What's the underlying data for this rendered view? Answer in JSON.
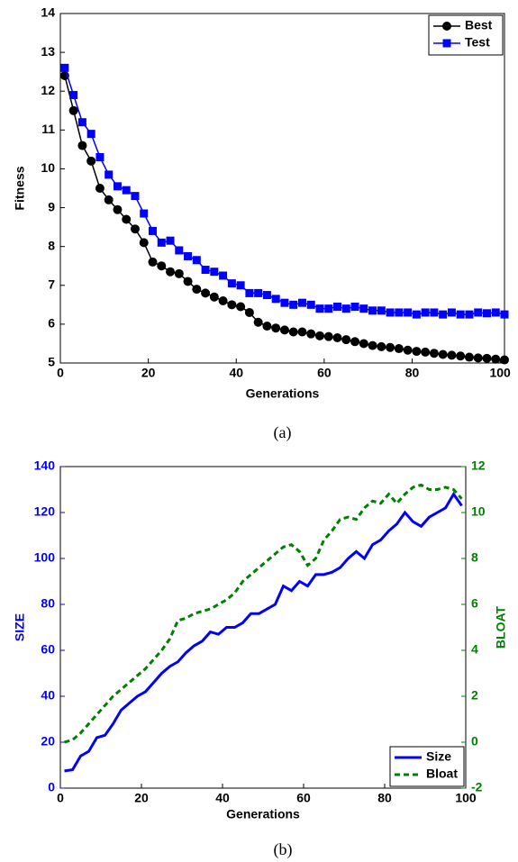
{
  "chart_data": [
    {
      "type": "line",
      "ylabel": "Fitness",
      "xlabel": "Generations",
      "caption": "(a)",
      "xlim": [
        0,
        101
      ],
      "xticks": [
        0,
        20,
        40,
        60,
        80,
        100
      ],
      "ylim": [
        5,
        14
      ],
      "yticks": [
        5,
        6,
        7,
        8,
        9,
        10,
        11,
        12,
        13,
        14
      ],
      "legend": "upper right",
      "x": [
        1,
        3,
        5,
        7,
        9,
        11,
        13,
        15,
        17,
        19,
        21,
        23,
        25,
        27,
        29,
        31,
        33,
        35,
        37,
        39,
        41,
        43,
        45,
        47,
        49,
        51,
        53,
        55,
        57,
        59,
        61,
        63,
        65,
        67,
        69,
        71,
        73,
        75,
        77,
        79,
        81,
        83,
        85,
        87,
        89,
        91,
        93,
        95,
        97,
        99,
        101
      ],
      "series": [
        {
          "name": "Best",
          "color": "#000000",
          "marker": "circle",
          "linestyle": "solid",
          "values": [
            12.4,
            11.5,
            10.6,
            10.2,
            9.5,
            9.2,
            8.95,
            8.7,
            8.45,
            8.1,
            7.6,
            7.5,
            7.35,
            7.3,
            7.1,
            6.9,
            6.8,
            6.7,
            6.6,
            6.5,
            6.45,
            6.3,
            6.05,
            5.95,
            5.9,
            5.85,
            5.8,
            5.8,
            5.75,
            5.7,
            5.68,
            5.65,
            5.6,
            5.55,
            5.5,
            5.45,
            5.42,
            5.4,
            5.37,
            5.33,
            5.3,
            5.28,
            5.25,
            5.22,
            5.2,
            5.18,
            5.15,
            5.13,
            5.12,
            5.1,
            5.08
          ]
        },
        {
          "name": "Test",
          "color": "#0000ff",
          "marker": "square",
          "linestyle": "solid",
          "values": [
            12.6,
            11.9,
            11.2,
            10.9,
            10.3,
            9.85,
            9.55,
            9.45,
            9.3,
            8.85,
            8.4,
            8.1,
            8.15,
            7.9,
            7.75,
            7.65,
            7.4,
            7.35,
            7.25,
            7.05,
            7.0,
            6.8,
            6.8,
            6.75,
            6.65,
            6.55,
            6.5,
            6.55,
            6.5,
            6.4,
            6.4,
            6.45,
            6.4,
            6.45,
            6.4,
            6.35,
            6.35,
            6.3,
            6.3,
            6.3,
            6.25,
            6.3,
            6.3,
            6.25,
            6.3,
            6.25,
            6.25,
            6.3,
            6.28,
            6.3,
            6.25
          ]
        }
      ]
    },
    {
      "type": "line",
      "ylabel": "SIZE",
      "y2label": "BLOAT",
      "xlabel": "Generations",
      "caption": "(b)",
      "xlim": [
        0,
        100
      ],
      "xticks": [
        0,
        20,
        40,
        60,
        80,
        100
      ],
      "ylim": [
        0,
        140
      ],
      "yticks": [
        0,
        20,
        40,
        60,
        80,
        100,
        120,
        140
      ],
      "y2lim": [
        -2,
        12
      ],
      "y2ticks": [
        -2,
        0,
        2,
        4,
        6,
        8,
        10,
        12
      ],
      "legend": "lower right",
      "x": [
        1,
        3,
        5,
        7,
        9,
        11,
        13,
        15,
        17,
        19,
        21,
        23,
        25,
        27,
        29,
        31,
        33,
        35,
        37,
        39,
        41,
        43,
        45,
        47,
        49,
        51,
        53,
        55,
        57,
        59,
        61,
        63,
        65,
        67,
        69,
        71,
        73,
        75,
        77,
        79,
        81,
        83,
        85,
        87,
        89,
        91,
        93,
        95,
        97,
        99
      ],
      "series": [
        {
          "name": "Size",
          "color": "#0000ff",
          "marker": "none",
          "linestyle": "solid",
          "values": [
            7.5,
            8,
            14,
            16,
            22,
            23,
            28,
            34,
            37,
            40,
            42,
            46,
            50,
            53,
            55,
            59,
            62,
            64,
            68,
            67,
            70,
            70,
            72,
            76,
            76,
            78,
            80,
            88,
            86,
            90,
            88,
            93,
            93,
            94,
            96,
            100,
            103,
            100,
            106,
            108,
            112,
            115,
            120,
            116,
            114,
            118,
            120,
            122,
            128,
            123
          ]
        },
        {
          "name": "Bloat",
          "color": "#008000",
          "marker": "none",
          "linestyle": "dashed",
          "axis": "y2",
          "values": [
            0,
            0.1,
            0.4,
            0.8,
            1.2,
            1.6,
            2,
            2.3,
            2.6,
            2.9,
            3.2,
            3.6,
            4,
            4.5,
            5.3,
            5.4,
            5.6,
            5.7,
            5.8,
            6,
            6.2,
            6.5,
            7,
            7.3,
            7.6,
            7.9,
            8.2,
            8.5,
            8.6,
            8.3,
            7.7,
            8.0,
            8.8,
            9.2,
            9.7,
            9.8,
            9.7,
            10.2,
            10.5,
            10.4,
            10.8,
            10.4,
            10.8,
            11.1,
            11.2,
            11.0,
            11.0,
            11.1,
            11.0,
            10.6
          ]
        }
      ]
    }
  ]
}
